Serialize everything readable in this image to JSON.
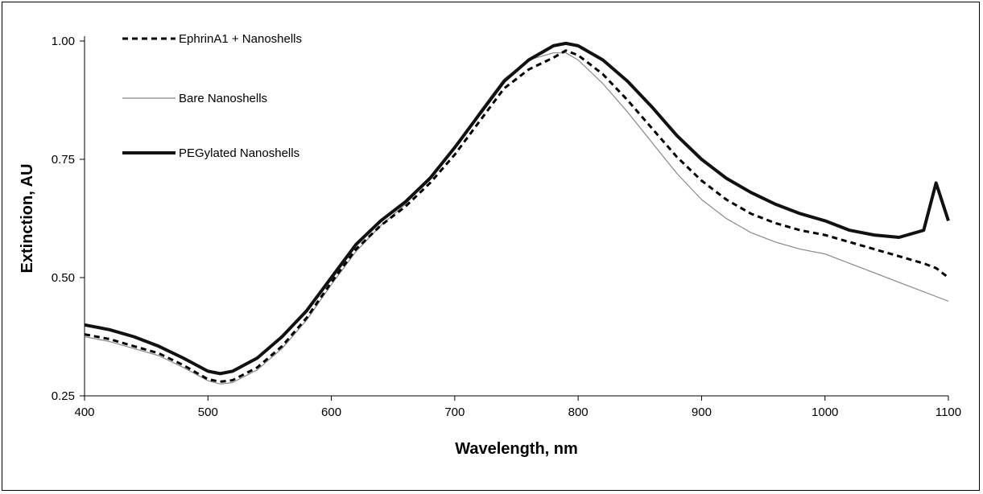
{
  "chart_data": {
    "type": "line",
    "title": "",
    "xlabel": "Wavelength, nm",
    "ylabel": "Extinction, AU",
    "xlim": [
      400,
      1100
    ],
    "ylim": [
      0.25,
      1.0
    ],
    "x_ticks": [
      "400",
      "500",
      "600",
      "700",
      "800",
      "900",
      "1000",
      "1100"
    ],
    "y_ticks": [
      "0.25",
      "0.50",
      "0.75",
      "1.00"
    ],
    "grid": false,
    "legend_position": "top-left",
    "series": [
      {
        "name": "EphrinA1 + Nanoshells",
        "style": "dashed",
        "color": "#000000",
        "x": [
          400,
          420,
          440,
          460,
          480,
          500,
          510,
          520,
          540,
          560,
          580,
          600,
          620,
          640,
          660,
          680,
          700,
          720,
          740,
          760,
          780,
          790,
          800,
          820,
          840,
          860,
          880,
          900,
          920,
          940,
          960,
          980,
          1000,
          1020,
          1040,
          1060,
          1080,
          1090,
          1100
        ],
        "y": [
          0.38,
          0.37,
          0.355,
          0.34,
          0.315,
          0.285,
          0.28,
          0.283,
          0.31,
          0.355,
          0.415,
          0.49,
          0.56,
          0.61,
          0.65,
          0.7,
          0.76,
          0.83,
          0.9,
          0.94,
          0.965,
          0.98,
          0.97,
          0.93,
          0.875,
          0.815,
          0.755,
          0.705,
          0.665,
          0.635,
          0.615,
          0.6,
          0.59,
          0.575,
          0.56,
          0.545,
          0.53,
          0.52,
          0.5
        ]
      },
      {
        "name": "Bare Nanoshells",
        "style": "thin",
        "color": "#888888",
        "x": [
          400,
          420,
          440,
          460,
          480,
          500,
          510,
          520,
          540,
          560,
          580,
          600,
          620,
          640,
          660,
          680,
          700,
          720,
          740,
          760,
          780,
          790,
          800,
          820,
          840,
          860,
          880,
          900,
          920,
          940,
          960,
          980,
          1000,
          1020,
          1040,
          1060,
          1080,
          1090,
          1100
        ],
        "y": [
          0.375,
          0.365,
          0.35,
          0.335,
          0.31,
          0.282,
          0.275,
          0.278,
          0.305,
          0.35,
          0.41,
          0.485,
          0.555,
          0.61,
          0.655,
          0.71,
          0.775,
          0.85,
          0.92,
          0.96,
          0.975,
          0.975,
          0.96,
          0.91,
          0.85,
          0.785,
          0.72,
          0.665,
          0.625,
          0.595,
          0.575,
          0.56,
          0.55,
          0.53,
          0.51,
          0.49,
          0.47,
          0.46,
          0.45
        ]
      },
      {
        "name": "PEGylated Nanoshells",
        "style": "thick",
        "color": "#111111",
        "x": [
          400,
          420,
          440,
          460,
          480,
          500,
          510,
          520,
          540,
          560,
          580,
          600,
          620,
          640,
          660,
          680,
          700,
          720,
          740,
          760,
          780,
          790,
          800,
          820,
          840,
          860,
          880,
          900,
          920,
          940,
          960,
          980,
          1000,
          1020,
          1040,
          1060,
          1080,
          1090,
          1100
        ],
        "y": [
          0.4,
          0.39,
          0.375,
          0.355,
          0.33,
          0.302,
          0.297,
          0.302,
          0.33,
          0.375,
          0.43,
          0.5,
          0.57,
          0.62,
          0.66,
          0.71,
          0.775,
          0.845,
          0.915,
          0.96,
          0.99,
          0.995,
          0.99,
          0.96,
          0.915,
          0.86,
          0.8,
          0.75,
          0.71,
          0.68,
          0.655,
          0.635,
          0.62,
          0.6,
          0.59,
          0.585,
          0.6,
          0.7,
          0.62
        ]
      }
    ]
  }
}
